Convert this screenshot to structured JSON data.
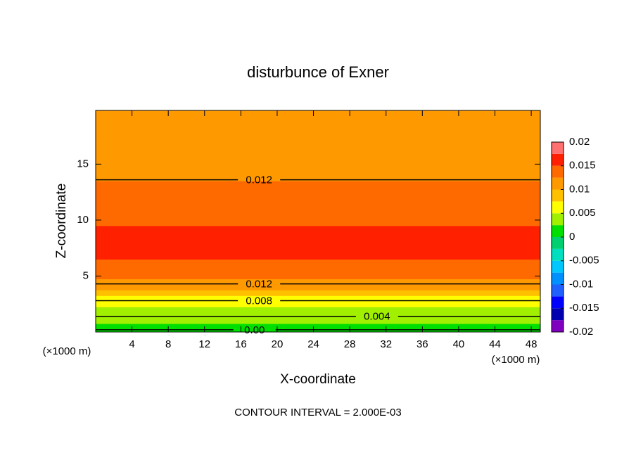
{
  "chart_data": {
    "type": "contour",
    "title": "disturbunce of Exner",
    "xlabel": "X-coordinate",
    "ylabel": "Z-coordinate",
    "xunit": "(×1000 m)",
    "yunit": "(×1000 m)",
    "footer": "CONTOUR INTERVAL = 2.000E-03",
    "xlim": [
      0,
      49
    ],
    "ylim": [
      0,
      19.8
    ],
    "xticks": [
      4,
      8,
      12,
      16,
      20,
      24,
      28,
      32,
      36,
      40,
      44,
      48
    ],
    "yticks": [
      5,
      10,
      15
    ],
    "z": [
      0,
      0.5,
      1,
      1.5,
      2,
      2.5,
      3,
      3.5,
      4,
      4.5,
      5,
      5.5,
      6,
      7,
      8,
      9,
      10,
      11,
      12,
      13,
      14,
      15,
      16,
      17,
      18,
      19,
      19.8
    ],
    "values": [
      0.0005,
      0.0015,
      0.0025,
      0.0035,
      0.0045,
      0.0055,
      0.007,
      0.0085,
      0.0105,
      0.0118,
      0.0128,
      0.0138,
      0.0148,
      0.0155,
      0.0157,
      0.0153,
      0.0148,
      0.0138,
      0.0132,
      0.0126,
      0.0121,
      0.0117,
      0.0113,
      0.011,
      0.0107,
      0.0103,
      0.0101
    ],
    "contour_labels": [
      {
        "level": 0.012,
        "label": "0.012",
        "x": 18,
        "z": 13.6
      },
      {
        "level": 0.012,
        "label": "0.012",
        "x": 18,
        "z": 4.3
      },
      {
        "level": 0.008,
        "label": "0.008",
        "x": 18,
        "z": 2.8
      },
      {
        "level": 0.004,
        "label": "0.004",
        "x": 31,
        "z": 1.4
      },
      {
        "level": 0,
        "label": "0.00",
        "x": 17.5,
        "z": 0.2
      }
    ],
    "colorbar": {
      "lim": [
        -0.02,
        0.02
      ],
      "ticks": [
        0.02,
        0.015,
        0.01,
        0.005,
        0,
        -0.005,
        -0.01,
        -0.015,
        -0.02
      ],
      "colors": [
        "#8000c0",
        "#0000b0",
        "#0000ff",
        "#2060ff",
        "#0090ff",
        "#00c8ff",
        "#00e0c0",
        "#00d070",
        "#00e000",
        "#a0f000",
        "#ffff00",
        "#ffc000",
        "#ff9900",
        "#ff6a00",
        "#ff2000",
        "#ff7070"
      ]
    }
  }
}
